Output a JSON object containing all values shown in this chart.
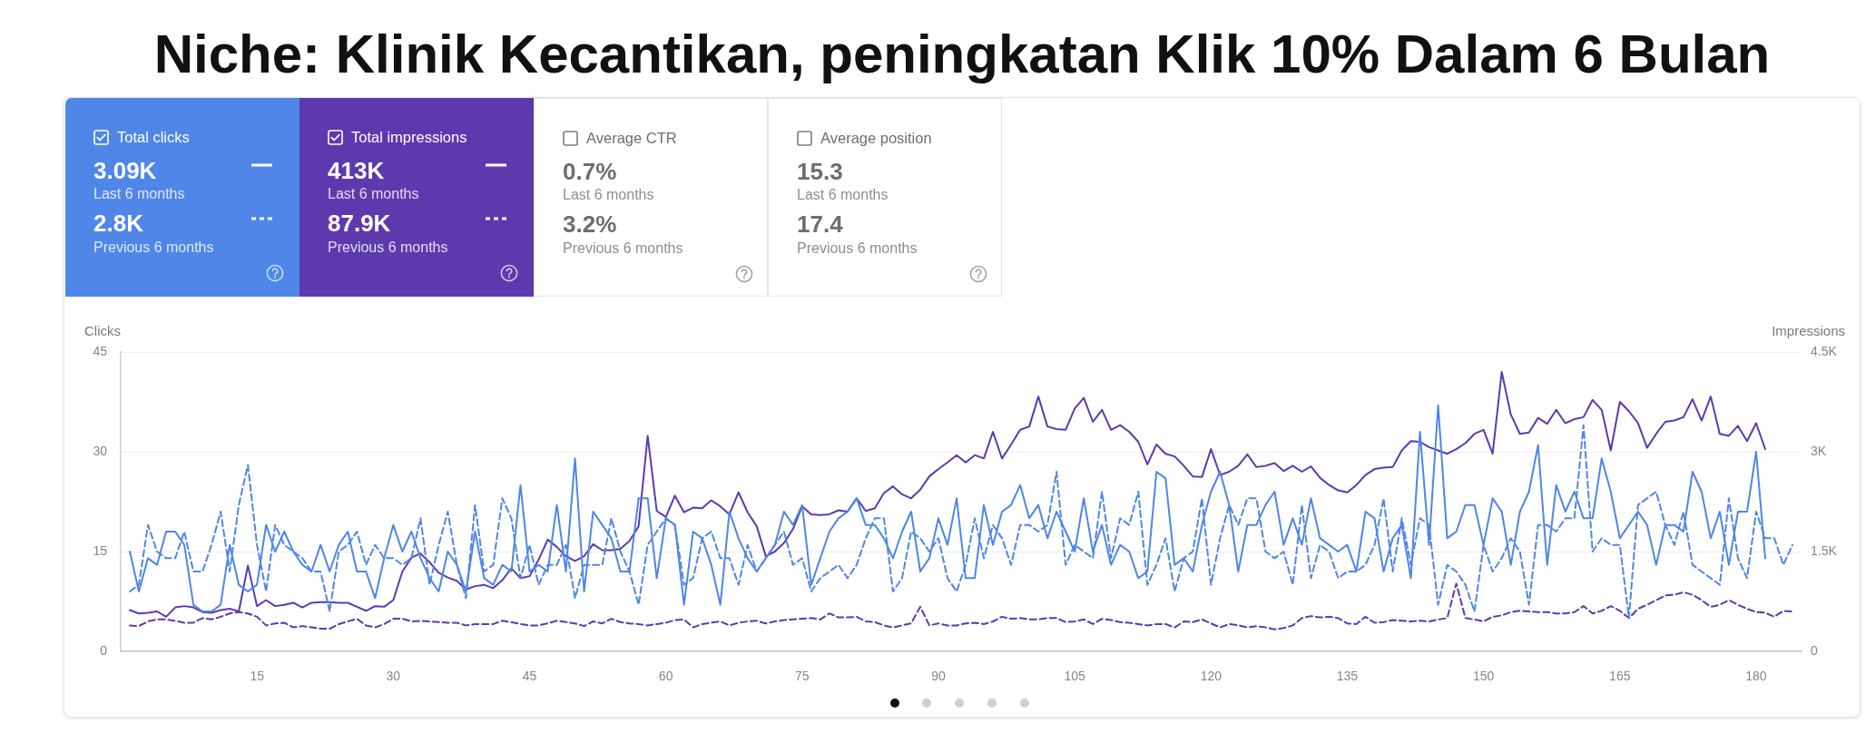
{
  "chart_data": {
    "type": "line",
    "title": "Niche: Klinik Kecantikan, peningkatan Klik 10% Dalam 6 Bulan",
    "annotations": [
      "Total clicks",
      "3.09K",
      "Last 6 months",
      "2.8K",
      "Previous 6 months",
      "Total impressions",
      "413K",
      "Last 6 months",
      "87.9K",
      "Previous 6 months",
      "Average CTR",
      "0.7%",
      "Last 6 months",
      "3.2%",
      "Previous 6 months",
      "Average position",
      "15.3",
      "Last 6 months",
      "17.4",
      "Previous 6 months"
    ],
    "ylabel": "Clicks",
    "y2label": "Impressions",
    "x": [
      1,
      2,
      3,
      4,
      5,
      6,
      7,
      8,
      9,
      10,
      11,
      12,
      13,
      14,
      15,
      16,
      17,
      18,
      19,
      20,
      21,
      22,
      23,
      24,
      25,
      26,
      27,
      28,
      29,
      30,
      31,
      32,
      33,
      34,
      35,
      36,
      37,
      38,
      39,
      40,
      41,
      42,
      43,
      44,
      45,
      46,
      47,
      48,
      49,
      50,
      51,
      52,
      53,
      54,
      55,
      56,
      57,
      58,
      59,
      60,
      61,
      62,
      63,
      64,
      65,
      66,
      67,
      68,
      69,
      70,
      71,
      72,
      73,
      74,
      75,
      76,
      77,
      78,
      79,
      80,
      81,
      82,
      83,
      84,
      85,
      86,
      87,
      88,
      89,
      90,
      91,
      92,
      93,
      94,
      95,
      96,
      97,
      98,
      99,
      100,
      101,
      102,
      103,
      104,
      105,
      106,
      107,
      108,
      109,
      110,
      111,
      112,
      113,
      114,
      115,
      116,
      117,
      118,
      119,
      120,
      121,
      122,
      123,
      124,
      125,
      126,
      127,
      128,
      129,
      130,
      131,
      132,
      133,
      134,
      135,
      136,
      137,
      138,
      139,
      140,
      141,
      142,
      143,
      144,
      145,
      146,
      147,
      148,
      149,
      150,
      151,
      152,
      153,
      154,
      155,
      156,
      157,
      158,
      159,
      160,
      161,
      162,
      163,
      164,
      165,
      166,
      167,
      168,
      169,
      170,
      171,
      172,
      173,
      174,
      175,
      176,
      177,
      178,
      179,
      180,
      181,
      182,
      183,
      184
    ],
    "series": [
      {
        "color": "#4f86e8",
        "line_style": "solid",
        "values": [
          15,
          9,
          14,
          13,
          18,
          18,
          16,
          7,
          6,
          6,
          7,
          16,
          10,
          9,
          10,
          19,
          15,
          18,
          15,
          13,
          12,
          16,
          12,
          16,
          18,
          12,
          12,
          8,
          14,
          19,
          15,
          18,
          14,
          11,
          9,
          15,
          13,
          9,
          18,
          11,
          10,
          13,
          12,
          25,
          12,
          13,
          12,
          22,
          12,
          29,
          9,
          21,
          19,
          17,
          12,
          12,
          23,
          23,
          11,
          20,
          19,
          7,
          18,
          17,
          13,
          7,
          21,
          17,
          14,
          12,
          14,
          16,
          21,
          19,
          22,
          10,
          14,
          18,
          20,
          21,
          23,
          19,
          19,
          17,
          14,
          18,
          21,
          12,
          14,
          20,
          16,
          23,
          11,
          11,
          22,
          16,
          21,
          22,
          25,
          20,
          22,
          17,
          21,
          18,
          15,
          23,
          15,
          19,
          13,
          16,
          15,
          11,
          12,
          27,
          26,
          13,
          14,
          12,
          19,
          24,
          27,
          22,
          12,
          19,
          19,
          22,
          24,
          16,
          20,
          16,
          23,
          17,
          16,
          15,
          16,
          12,
          21,
          20,
          12,
          17,
          19,
          11,
          33,
          16,
          37,
          17,
          18,
          22,
          22,
          16,
          23,
          21,
          13,
          21,
          24,
          31,
          13,
          25,
          21,
          24,
          20,
          20,
          29,
          24,
          17,
          19,
          21,
          19,
          13,
          19,
          19,
          18,
          27,
          24,
          17,
          21,
          13,
          21,
          21,
          30,
          14,
          null,
          null,
          null
        ]
      },
      {
        "color": "#4f86e8",
        "line_style": "dashed",
        "values": [
          9,
          10,
          19,
          15,
          14,
          14,
          18,
          12,
          12,
          16,
          21,
          12,
          22,
          28,
          16,
          9,
          19,
          16,
          15,
          14,
          12,
          12,
          6,
          15,
          16,
          18,
          13,
          16,
          14,
          14,
          13,
          14,
          20,
          10,
          16,
          21,
          13,
          8,
          22,
          12,
          13,
          23,
          20,
          11,
          16,
          10,
          13,
          13,
          16,
          8,
          13,
          13,
          13,
          20,
          15,
          12,
          7,
          16,
          18,
          20,
          19,
          10,
          11,
          17,
          18,
          14,
          14,
          10,
          16,
          12,
          14,
          16,
          18,
          13,
          14,
          9,
          11,
          12,
          13,
          11,
          13,
          17,
          20,
          20,
          9,
          11,
          18,
          17,
          15,
          17,
          11,
          9,
          13,
          20,
          14,
          19,
          17,
          13,
          19,
          19,
          18,
          19,
          27,
          13,
          16,
          15,
          14,
          24,
          14,
          20,
          19,
          24,
          10,
          13,
          17,
          9,
          14,
          15,
          23,
          10,
          17,
          22,
          19,
          23,
          23,
          15,
          14,
          15,
          10,
          22,
          11,
          16,
          15,
          11,
          12,
          12,
          13,
          16,
          23,
          12,
          20,
          13,
          20,
          19,
          7,
          13,
          12,
          10,
          6,
          16,
          12,
          14,
          17,
          15,
          7,
          19,
          19,
          18,
          20,
          20,
          34,
          15,
          17,
          16,
          16,
          5,
          22,
          23,
          24,
          19,
          16,
          21,
          13,
          12,
          11,
          10,
          23,
          14,
          11,
          21,
          17,
          17,
          13,
          16
        ]
      },
      {
        "color": "#5c3aae",
        "line_style": "solid",
        "axis": "y2",
        "values": [
          620,
          570,
          580,
          600,
          520,
          660,
          680,
          660,
          590,
          580,
          620,
          640,
          600,
          1290,
          680,
          770,
          680,
          700,
          730,
          660,
          730,
          740,
          740,
          730,
          730,
          670,
          610,
          680,
          670,
          770,
          1200,
          1410,
          1470,
          1340,
          1180,
          1110,
          1060,
          930,
          980,
          1000,
          950,
          1070,
          1250,
          1100,
          1130,
          1380,
          1680,
          1570,
          1430,
          1360,
          1430,
          1610,
          1520,
          1520,
          1540,
          1660,
          1880,
          3240,
          2110,
          2020,
          2340,
          2090,
          2160,
          2150,
          2270,
          2180,
          2060,
          2390,
          2090,
          1880,
          1430,
          1500,
          1630,
          1840,
          2180,
          2060,
          2050,
          2060,
          2120,
          2100,
          2300,
          2110,
          2150,
          2380,
          2480,
          2360,
          2300,
          2430,
          2630,
          2740,
          2840,
          2950,
          2840,
          2950,
          2900,
          3300,
          2900,
          3110,
          3330,
          3380,
          3830,
          3380,
          3340,
          3330,
          3650,
          3810,
          3450,
          3630,
          3330,
          3400,
          3300,
          3150,
          2810,
          3110,
          2970,
          2930,
          2790,
          2630,
          2620,
          3040,
          2650,
          2700,
          2790,
          2960,
          2770,
          2790,
          2830,
          2710,
          2790,
          2700,
          2780,
          2610,
          2500,
          2420,
          2390,
          2500,
          2650,
          2740,
          2760,
          2770,
          3020,
          3160,
          3150,
          3070,
          3020,
          2970,
          3040,
          3130,
          3270,
          3330,
          2970,
          4200,
          3560,
          3270,
          3290,
          3510,
          3420,
          3630,
          3430,
          3490,
          3520,
          3780,
          3630,
          3020,
          3750,
          3610,
          3430,
          3060,
          3270,
          3450,
          3470,
          3520,
          3790,
          3470,
          3830,
          3270,
          3240,
          3390,
          3160,
          3430,
          3040,
          null,
          null,
          null
        ]
      },
      {
        "color": "#5c3aae",
        "line_style": "dashed",
        "axis": "y2",
        "values": [
          390,
          380,
          450,
          480,
          480,
          460,
          430,
          430,
          500,
          480,
          520,
          570,
          590,
          570,
          520,
          390,
          420,
          430,
          360,
          380,
          360,
          340,
          340,
          410,
          450,
          490,
          390,
          360,
          410,
          490,
          490,
          450,
          460,
          450,
          440,
          430,
          430,
          390,
          410,
          410,
          410,
          460,
          440,
          410,
          390,
          390,
          420,
          460,
          440,
          420,
          380,
          450,
          420,
          490,
          440,
          420,
          410,
          390,
          410,
          430,
          470,
          480,
          360,
          410,
          430,
          450,
          390,
          430,
          450,
          460,
          420,
          450,
          470,
          480,
          490,
          500,
          480,
          570,
          510,
          510,
          520,
          450,
          440,
          390,
          360,
          390,
          420,
          670,
          390,
          420,
          390,
          390,
          420,
          430,
          410,
          450,
          520,
          490,
          500,
          480,
          480,
          500,
          500,
          440,
          450,
          480,
          410,
          490,
          470,
          440,
          430,
          410,
          390,
          410,
          410,
          360,
          450,
          440,
          480,
          420,
          360,
          410,
          390,
          360,
          380,
          360,
          330,
          350,
          390,
          500,
          530,
          510,
          520,
          500,
          420,
          410,
          520,
          430,
          440,
          470,
          460,
          450,
          460,
          450,
          480,
          500,
          1020,
          500,
          480,
          450,
          520,
          540,
          590,
          610,
          600,
          590,
          590,
          570,
          570,
          590,
          680,
          570,
          610,
          680,
          610,
          500,
          640,
          700,
          770,
          840,
          850,
          890,
          850,
          770,
          670,
          700,
          770,
          700,
          640,
          590,
          580,
          520,
          610,
          600
        ]
      }
    ],
    "xlim": [
      0,
      185
    ],
    "xticks": [
      15,
      30,
      45,
      60,
      75,
      90,
      105,
      120,
      135,
      150,
      165,
      180
    ],
    "ylim": [
      0,
      45
    ],
    "yticks": [
      0,
      15,
      30,
      45
    ],
    "y2lim": [
      0,
      4500
    ],
    "y2ticks": [
      0,
      {
        "value": 1500,
        "label": "1.5K"
      },
      {
        "value": 3000,
        "label": "3K"
      },
      {
        "value": 4500,
        "label": "4.5K"
      }
    ],
    "grid": "y",
    "legend": false,
    "marker": "none"
  }
}
